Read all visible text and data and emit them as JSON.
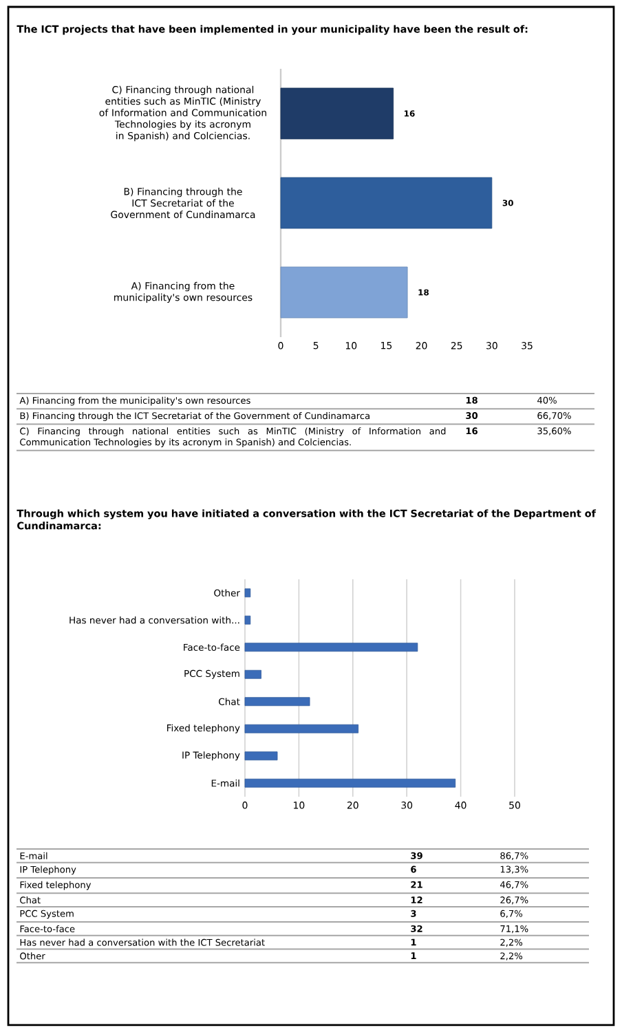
{
  "chart_data": [
    {
      "type": "bar",
      "orientation": "horizontal",
      "title": "The ICT projects that have been implemented in your municipality have been the result of:",
      "categories": [
        "C) Financing through national entities such as MinTIC (Ministry of Information and Communication Technologies by its acronym in Spanish) and Colciencias.",
        "B) Financing through the ICT Secretariat of the Government of Cundinamarca",
        "A) Financing from the municipality's own resources"
      ],
      "values": [
        16,
        30,
        18
      ],
      "colors": [
        "#1f3c68",
        "#2e5e9c",
        "#7fa3d6"
      ],
      "data_labels": true,
      "xlim": [
        0,
        35
      ],
      "xticks": [
        0,
        5,
        10,
        15,
        20,
        25,
        30,
        35
      ],
      "annotations": [
        "A) Financing from the municipality's own resources",
        "18",
        "40%",
        "B) Financing through the ICT Secretariat of the Government of Cundinamarca",
        "30",
        "66,70%",
        "C) Financing through national entities such as MinTIC (Ministry of Information and Communication Technologies by its acronym in Spanish) and Colciencias.",
        "16",
        "35,60%"
      ]
    },
    {
      "type": "bar",
      "orientation": "horizontal",
      "title": "Through which system you have initiated a conversation with the ICT Secretariat of the Department of Cundinamarca:",
      "categories": [
        "Other",
        "Has never had a conversation with...",
        "Face-to-face",
        "PCC System",
        "Chat",
        "Fixed telephony",
        "IP Telephony",
        "E-mail"
      ],
      "values": [
        1,
        1,
        32,
        3,
        12,
        21,
        6,
        39
      ],
      "color": "#3b6cb8",
      "grid": "x",
      "xlim": [
        0,
        50
      ],
      "xticks": [
        0,
        10,
        20,
        30,
        40,
        50
      ],
      "annotations": [
        "E-mail",
        "39",
        "86,7%",
        "IP Telephony",
        "6",
        "13,3%",
        "Fixed telephony",
        "21",
        "46,7%",
        "Chat",
        "12",
        "26,7%",
        "PCC System",
        "3",
        "6,7%",
        "Face-to-face",
        "32",
        "71,1%",
        "Has never had a conversation with the ICT Secretariat",
        "1",
        "2,2%",
        "Other",
        "1",
        "2,2%"
      ]
    }
  ]
}
